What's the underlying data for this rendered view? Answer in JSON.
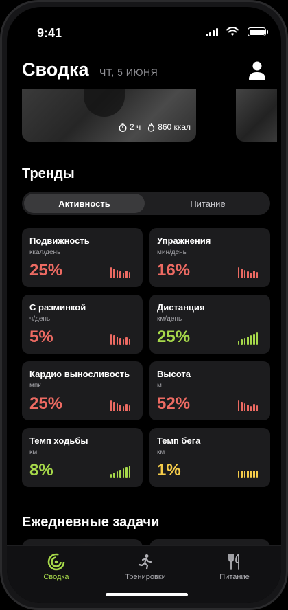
{
  "status": {
    "time": "9:41"
  },
  "header": {
    "title": "Сводка",
    "date": "ЧТ, 5 ИЮНЯ"
  },
  "hero": {
    "duration": "2 ч",
    "calories": "860 ккал"
  },
  "trends": {
    "title": "Тренды",
    "tabs": [
      {
        "label": "Активность",
        "active": true
      },
      {
        "label": "Питание",
        "active": false
      }
    ],
    "cards": [
      {
        "name": "Подвижность",
        "unit": "ккал/день",
        "value": "25%",
        "color": "#ec6a62",
        "trend": "down"
      },
      {
        "name": "Упражнения",
        "unit": "мин/день",
        "value": "16%",
        "color": "#ec6a62",
        "trend": "down"
      },
      {
        "name": "С разминкой",
        "unit": "ч/день",
        "value": "5%",
        "color": "#ec6a62",
        "trend": "down"
      },
      {
        "name": "Дистанция",
        "unit": "км/день",
        "value": "25%",
        "color": "#a6d84a",
        "trend": "up"
      },
      {
        "name": "Кардио выносливость",
        "unit": "мпк",
        "value": "25%",
        "color": "#ec6a62",
        "trend": "down"
      },
      {
        "name": "Высота",
        "unit": "м",
        "value": "52%",
        "color": "#ec6a62",
        "trend": "down"
      },
      {
        "name": "Темп ходьбы",
        "unit": "км",
        "value": "8%",
        "color": "#a6d84a",
        "trend": "up"
      },
      {
        "name": "Темп бега",
        "unit": "км",
        "value": "1%",
        "color": "#f5cc4a",
        "trend": "flat"
      }
    ]
  },
  "daily": {
    "title": "Ежедневные задачи"
  },
  "tabbar": {
    "items": [
      {
        "label": "Сводка",
        "icon": "summary-rings-icon",
        "active": true
      },
      {
        "label": "Тренировки",
        "icon": "running-figure-icon",
        "active": false
      },
      {
        "label": "Питание",
        "icon": "fork-knife-icon",
        "active": false
      }
    ]
  },
  "colors": {
    "accent": "#a6d84a",
    "down": "#ec6a62",
    "flat": "#f5cc4a"
  }
}
